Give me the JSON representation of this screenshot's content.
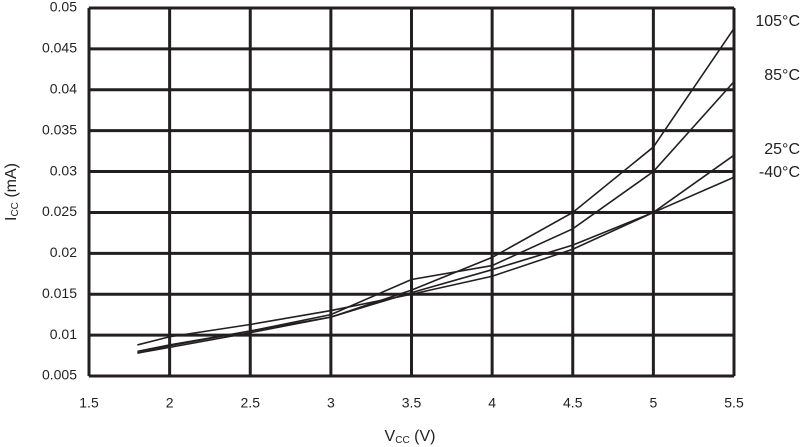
{
  "chart_data": {
    "type": "line",
    "xlabel": [
      "V",
      "CC",
      " (V)"
    ],
    "ylabel": [
      "I",
      "CC",
      " (mA)"
    ],
    "x": [
      1.8,
      2,
      2.5,
      3,
      3.5,
      4,
      4.5,
      5,
      5.5
    ],
    "series": [
      {
        "name": "105°C",
        "color": "#231f20",
        "values": [
          0.0078,
          0.0085,
          0.0103,
          0.0122,
          0.0155,
          0.0195,
          0.025,
          0.033,
          0.0475
        ]
      },
      {
        "name": "85°C",
        "color": "#231f20",
        "values": [
          0.008,
          0.0088,
          0.0105,
          0.0125,
          0.0168,
          0.0185,
          0.023,
          0.03,
          0.041
        ]
      },
      {
        "name": "25°C",
        "color": "#231f20",
        "values": [
          0.0078,
          0.0087,
          0.0105,
          0.0122,
          0.0152,
          0.018,
          0.021,
          0.025,
          0.032
        ]
      },
      {
        "name": "-40°C",
        "color": "#231f20",
        "values": [
          0.0088,
          0.0098,
          0.0113,
          0.013,
          0.015,
          0.0172,
          0.0205,
          0.025,
          0.0293
        ]
      }
    ],
    "xlim": [
      1.5,
      5.5
    ],
    "xticks": [
      1.5,
      2,
      2.5,
      3,
      3.5,
      4,
      4.5,
      5,
      5.5
    ],
    "ylim": [
      0.005,
      0.05
    ],
    "yticks": [
      0.005,
      0.01,
      0.015,
      0.02,
      0.025,
      0.03,
      0.035,
      0.04,
      0.045,
      0.05
    ],
    "grid": true
  }
}
